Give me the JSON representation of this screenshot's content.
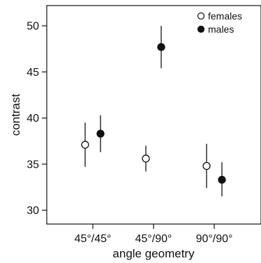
{
  "chart_data": {
    "type": "scatter",
    "categories": [
      "45°/45°",
      "45°/90°",
      "90°/90°"
    ],
    "xlabel": "angle geometry",
    "ylabel": "contrast",
    "ylim": [
      28.5,
      52.2
    ],
    "yticks": [
      30,
      35,
      40,
      45,
      50
    ],
    "grid": false,
    "legend_position": "top-right",
    "error_bars": true,
    "series": [
      {
        "name": "females",
        "marker": "open-circle",
        "color": "#111111",
        "values": [
          37.1,
          35.6,
          34.8
        ],
        "error_low": [
          34.7,
          34.2,
          32.4
        ],
        "error_high": [
          39.5,
          37.0,
          37.2
        ]
      },
      {
        "name": "males",
        "marker": "filled-circle",
        "color": "#111111",
        "values": [
          38.3,
          47.7,
          33.3
        ],
        "error_low": [
          36.3,
          45.4,
          31.5
        ],
        "error_high": [
          40.3,
          50.0,
          35.2
        ]
      }
    ]
  }
}
